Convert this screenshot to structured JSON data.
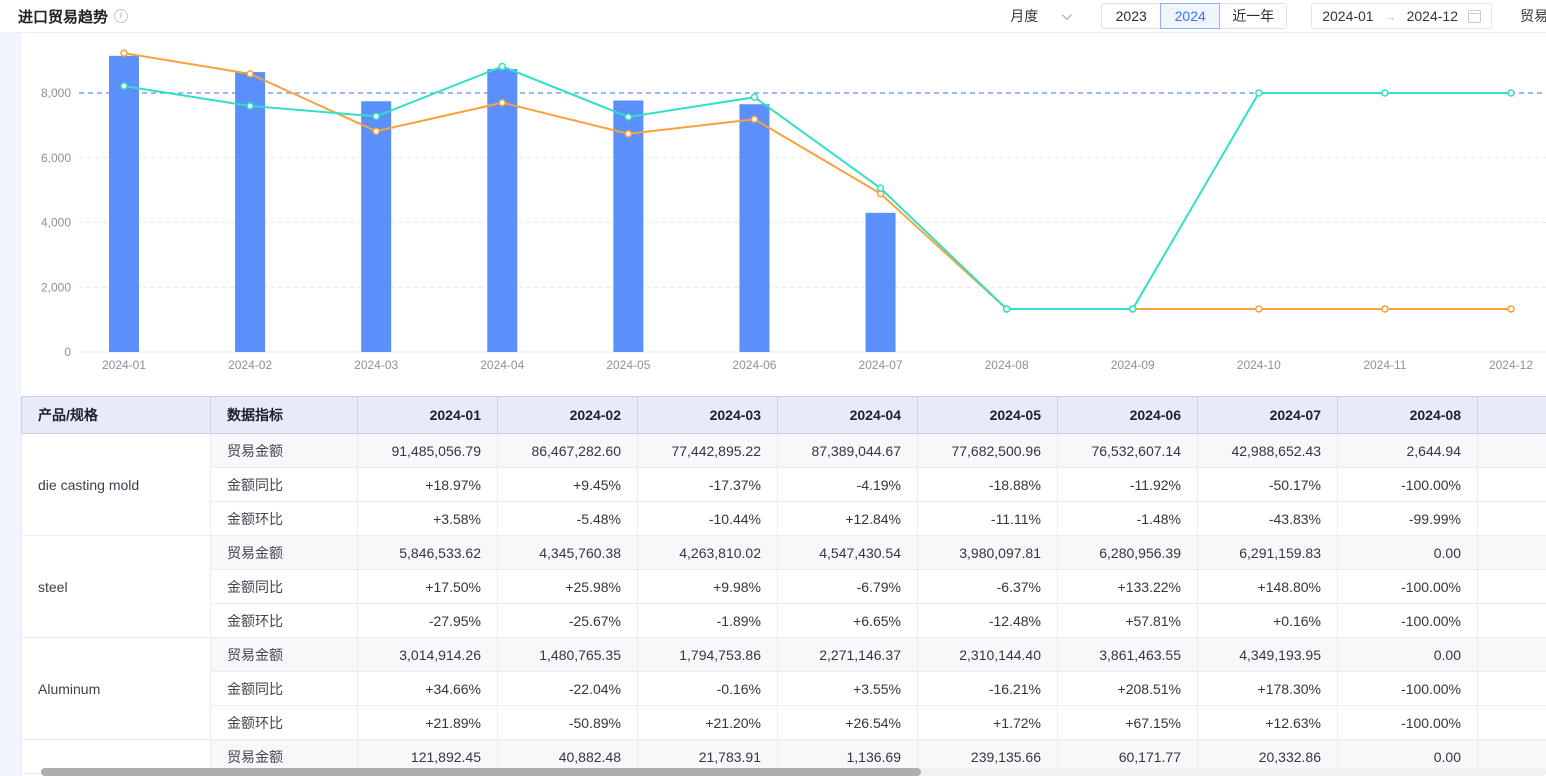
{
  "header": {
    "title": "进口贸易趋势",
    "period_select": {
      "value": "月度"
    },
    "year_buttons": [
      {
        "label": "2023",
        "selected": false
      },
      {
        "label": "2024",
        "selected": true
      },
      {
        "label": "近一年",
        "selected": false
      }
    ],
    "date_range": {
      "start": "2024-01",
      "end": "2024-12"
    },
    "right_cut_label": "贸易"
  },
  "chart_data": {
    "type": "bar",
    "x": [
      "2024-01",
      "2024-02",
      "2024-03",
      "2024-04",
      "2024-05",
      "2024-06",
      "2024-07",
      "2024-08",
      "2024-09",
      "2024-10",
      "2024-11",
      "2024-12"
    ],
    "series": [
      {
        "name": "bars-blue",
        "type": "bar",
        "color": "#5B8FF9",
        "values": [
          9148.5,
          8646.7,
          7744.3,
          8738.9,
          7768.3,
          7653.3,
          4298.9,
          0.26,
          0,
          0,
          0,
          0
        ]
      },
      {
        "name": "line-orange",
        "type": "line",
        "color": "#F9A13C",
        "values": [
          9230,
          8590,
          6820,
          7700,
          6740,
          7190,
          4890,
          1330,
          1330,
          1330,
          1330,
          1330
        ]
      },
      {
        "name": "line-teal",
        "type": "line",
        "color": "#32DFC8",
        "values": [
          8215,
          7600,
          7280,
          8820,
          7260,
          7870,
          5060,
          1330,
          1330,
          8000,
          8000,
          8000
        ]
      }
    ],
    "reference_line": 8000,
    "y_ticks": [
      0,
      2000,
      4000,
      6000,
      8000
    ],
    "ylim": [
      0,
      9500
    ],
    "grid": true,
    "legend": "none",
    "title": "",
    "xlabel": "",
    "ylabel": ""
  },
  "table": {
    "col_product": "产品/规格",
    "col_metric": "数据指标",
    "months": [
      "2024-01",
      "2024-02",
      "2024-03",
      "2024-04",
      "2024-05",
      "2024-06",
      "2024-07",
      "2024-08"
    ],
    "products": [
      {
        "name": "die casting mold",
        "rows": [
          {
            "metric": "贸易金额",
            "kind": "amount",
            "values": [
              "91,485,056.79",
              "86,467,282.60",
              "77,442,895.22",
              "87,389,044.67",
              "77,682,500.96",
              "76,532,607.14",
              "42,988,652.43",
              "2,644.94"
            ]
          },
          {
            "metric": "金额同比",
            "kind": "pct",
            "values": [
              "+18.97%",
              "+9.45%",
              "-17.37%",
              "-4.19%",
              "-18.88%",
              "-11.92%",
              "-50.17%",
              "-100.00%"
            ]
          },
          {
            "metric": "金额环比",
            "kind": "pct",
            "values": [
              "+3.58%",
              "-5.48%",
              "-10.44%",
              "+12.84%",
              "-11.11%",
              "-1.48%",
              "-43.83%",
              "-99.99%"
            ]
          }
        ]
      },
      {
        "name": "steel",
        "rows": [
          {
            "metric": "贸易金额",
            "kind": "amount",
            "values": [
              "5,846,533.62",
              "4,345,760.38",
              "4,263,810.02",
              "4,547,430.54",
              "3,980,097.81",
              "6,280,956.39",
              "6,291,159.83",
              "0.00"
            ]
          },
          {
            "metric": "金额同比",
            "kind": "pct",
            "values": [
              "+17.50%",
              "+25.98%",
              "+9.98%",
              "-6.79%",
              "-6.37%",
              "+133.22%",
              "+148.80%",
              "-100.00%"
            ]
          },
          {
            "metric": "金额环比",
            "kind": "pct",
            "values": [
              "-27.95%",
              "-25.67%",
              "-1.89%",
              "+6.65%",
              "-12.48%",
              "+57.81%",
              "+0.16%",
              "-100.00%"
            ]
          }
        ]
      },
      {
        "name": "Aluminum",
        "rows": [
          {
            "metric": "贸易金额",
            "kind": "amount",
            "values": [
              "3,014,914.26",
              "1,480,765.35",
              "1,794,753.86",
              "2,271,146.37",
              "2,310,144.40",
              "3,861,463.55",
              "4,349,193.95",
              "0.00"
            ]
          },
          {
            "metric": "金额同比",
            "kind": "pct",
            "values": [
              "+34.66%",
              "-22.04%",
              "-0.16%",
              "+3.55%",
              "-16.21%",
              "+208.51%",
              "+178.30%",
              "-100.00%"
            ]
          },
          {
            "metric": "金额环比",
            "kind": "pct",
            "values": [
              "+21.89%",
              "-50.89%",
              "+21.20%",
              "+26.54%",
              "+1.72%",
              "+67.15%",
              "+12.63%",
              "-100.00%"
            ]
          }
        ]
      },
      {
        "name": "",
        "rows": [
          {
            "metric": "贸易金额",
            "kind": "amount",
            "values": [
              "121,892.45",
              "40,882.48",
              "21,783.91",
              "1,136.69",
              "239,135.66",
              "60,171.77",
              "20,332.86",
              "0.00"
            ]
          }
        ]
      }
    ]
  }
}
